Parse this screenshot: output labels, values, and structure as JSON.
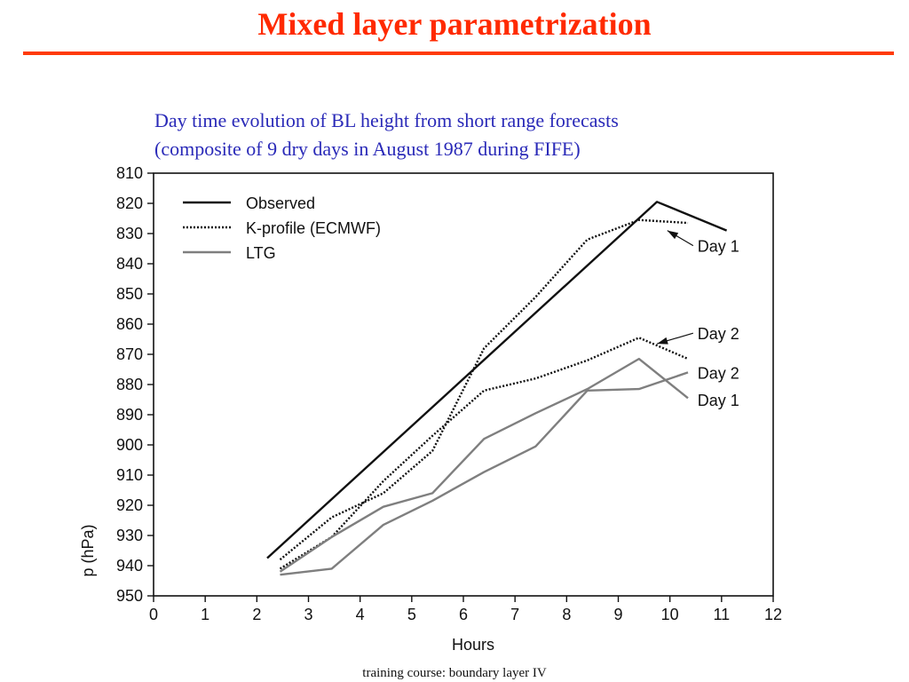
{
  "slide": {
    "title": "Mixed layer parametrization",
    "subtitle_line1": "Day time evolution of BL height from short range forecasts",
    "subtitle_line2": "(composite of 9 dry days in August 1987 during FIFE)",
    "footer": "training course: boundary layer IV"
  },
  "chart_data": {
    "type": "line",
    "title": "Day time evolution of BL height from short range forecasts (composite of 9 dry days in August 1987 during FIFE)",
    "xlabel": "Hours",
    "ylabel": "p (hPa)",
    "xlim": [
      0,
      12
    ],
    "ylim": [
      950,
      810
    ],
    "y_inverted": true,
    "x_ticks": [
      0,
      1,
      2,
      3,
      4,
      5,
      6,
      7,
      8,
      9,
      10,
      11,
      12
    ],
    "y_ticks": [
      810,
      820,
      830,
      840,
      850,
      860,
      870,
      880,
      890,
      900,
      910,
      920,
      930,
      940,
      950
    ],
    "grid": false,
    "legend": {
      "placement": "top-left",
      "entries": [
        {
          "label": "Observed",
          "style": "solid-black"
        },
        {
          "label": "K-profile (ECMWF)",
          "style": "dotted-black"
        },
        {
          "label": "LTG",
          "style": "solid-grey"
        }
      ]
    },
    "series": [
      {
        "name": "Observed",
        "style": "solid-black",
        "x": [
          2.2,
          9.75,
          11.1
        ],
        "y": [
          937.5,
          819.5,
          829
        ]
      },
      {
        "name": "K-profile (ECMWF)",
        "style": "dotted-black",
        "x": [
          2.45,
          3.45,
          4.45,
          5.4,
          6.4,
          7.4,
          8.4,
          9.4,
          10.35
        ],
        "y": [
          938,
          924,
          916,
          902,
          868,
          851,
          832,
          825.5,
          826.5
        ]
      },
      {
        "name": "K-profile (ECMWF)",
        "style": "dotted-black",
        "x": [
          2.45,
          3.45,
          4.45,
          5.4,
          6.4,
          7.4,
          8.4,
          9.4,
          10.35
        ],
        "y": [
          941,
          930.5,
          912,
          897,
          882,
          878,
          872,
          864.5,
          871.5
        ]
      },
      {
        "name": "LTG",
        "style": "solid-grey",
        "x": [
          2.45,
          3.45,
          4.45,
          5.4,
          6.4,
          7.4,
          8.4,
          9.4,
          10.35
        ],
        "y": [
          942,
          930.5,
          920.5,
          916,
          898,
          889.5,
          881.5,
          871.5,
          884.5
        ]
      },
      {
        "name": "LTG",
        "style": "solid-grey",
        "x": [
          2.45,
          3.45,
          4.45,
          5.4,
          6.4,
          7.4,
          8.4,
          9.4,
          10.35
        ],
        "y": [
          943,
          941,
          926.5,
          918.5,
          909,
          900.5,
          882,
          881.5,
          876
        ]
      }
    ],
    "annotations": [
      {
        "text": "Day 1",
        "x": 10.5,
        "y": 834
      },
      {
        "text": "Day 2",
        "x": 10.5,
        "y": 863
      },
      {
        "text": "Day 2",
        "x": 10.5,
        "y": 876
      },
      {
        "text": "Day 1",
        "x": 10.5,
        "y": 885
      }
    ],
    "colors": {
      "axis": "#111111",
      "black": "#111111",
      "grey": "#7f7f7f"
    }
  }
}
